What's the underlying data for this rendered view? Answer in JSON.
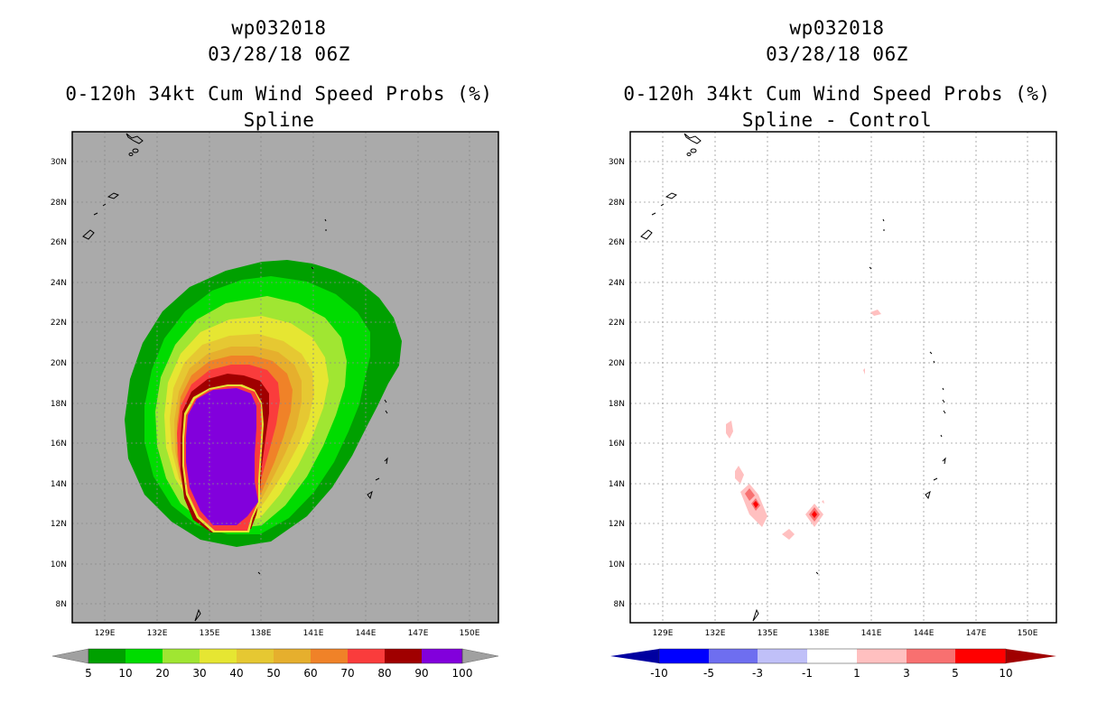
{
  "panels": [
    {
      "id": "left",
      "storm_id": "wp032018",
      "datetime": "03/28/18 06Z",
      "product": "0-120h 34kt Cum Wind Speed Probs (%)",
      "variant": "Spline",
      "lat_labels": [
        "8N",
        "10N",
        "12N",
        "14N",
        "16N",
        "18N",
        "20N",
        "22N",
        "24N",
        "26N",
        "28N",
        "30N"
      ],
      "lon_labels": [
        "129E",
        "132E",
        "135E",
        "138E",
        "141E",
        "144E",
        "147E",
        "150E"
      ],
      "colorbar": {
        "ticks": [
          "5",
          "10",
          "20",
          "30",
          "40",
          "50",
          "60",
          "70",
          "80",
          "90",
          "100"
        ],
        "colors": [
          "#00a000",
          "#00dc00",
          "#a0e632",
          "#e6e632",
          "#e6c832",
          "#e6af2d",
          "#f08228",
          "#fa3c3c",
          "#a00000",
          "#8200dc"
        ],
        "end_color": "#a0a0a0"
      }
    },
    {
      "id": "right",
      "storm_id": "wp032018",
      "datetime": "03/28/18 06Z",
      "product": "0-120h 34kt Cum Wind Speed Probs (%)",
      "variant": "Spline - Control",
      "lat_labels": [
        "8N",
        "10N",
        "12N",
        "14N",
        "16N",
        "18N",
        "20N",
        "22N",
        "24N",
        "26N",
        "28N",
        "30N"
      ],
      "lon_labels": [
        "129E",
        "132E",
        "135E",
        "138E",
        "141E",
        "144E",
        "147E",
        "150E"
      ],
      "colorbar": {
        "ticks": [
          "-10",
          "-5",
          "-3",
          "-1",
          "1",
          "3",
          "5",
          "10"
        ],
        "colors": [
          "#0000ff",
          "#6e6ef0",
          "#c0c0f8",
          "#ffffff",
          "#ffc0c0",
          "#f87070",
          "#ff0000"
        ],
        "end_color_low": "#0000a0",
        "end_color_high": "#a00000"
      }
    }
  ]
}
